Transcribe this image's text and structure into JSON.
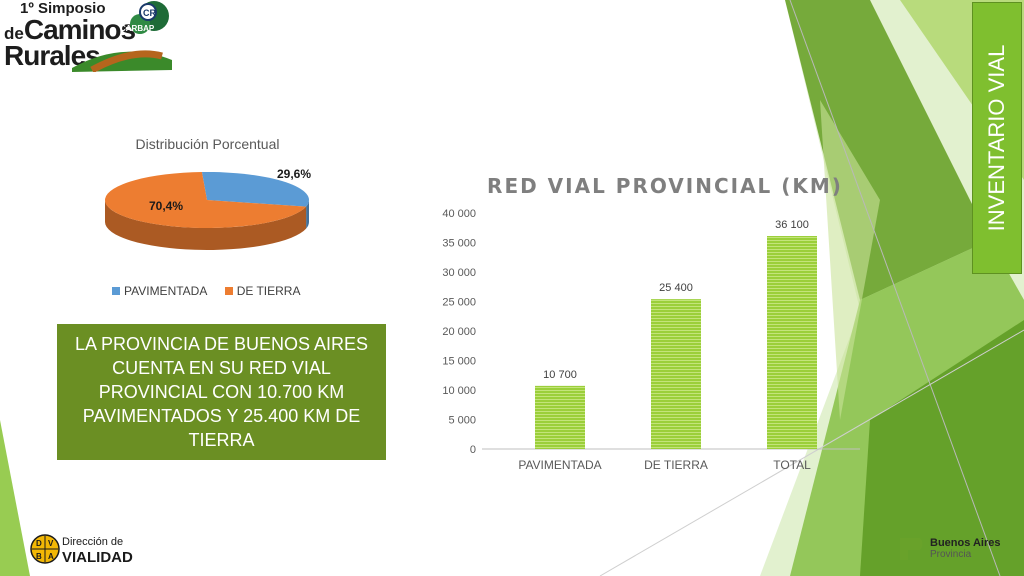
{
  "colors": {
    "accent_green": "#7fbf2f",
    "callout_bg": "#6b8f23",
    "pie_paved": "#5b9bd5",
    "pie_dirt": "#ed7d31",
    "bar_fill": "#9bcf3a"
  },
  "logo": {
    "line1": "1º Simposio",
    "line2_prefix": "de",
    "line2": "Caminos",
    "line3": "Rurales",
    "badge": "CARBAP",
    "emblem_letters": "CR"
  },
  "side_title": "INVENTARIO VIAL",
  "callout_text": "LA PROVINCIA DE BUENOS AIRES CUENTA EN SU RED VIAL PROVINCIAL CON 10.700 KM PAVIMENTADOS Y 25.400 KM DE TIERRA",
  "footer": {
    "left_line1": "Dirección de",
    "left_line2": "VIALIDAD",
    "left_badge_letters": [
      "D",
      "V",
      "B",
      "A"
    ],
    "right_line1": "Buenos Aires",
    "right_line2": "Provincia"
  },
  "chart_data": [
    {
      "type": "pie",
      "title": "Distribución Porcentual",
      "categories": [
        "PAVIMENTADA",
        "DE TIERRA"
      ],
      "values": [
        29.6,
        70.4
      ],
      "labels": [
        "29,6%",
        "70,4%"
      ],
      "legend": "bottom",
      "colors": [
        "#5b9bd5",
        "#ed7d31"
      ],
      "style": "3d"
    },
    {
      "type": "bar",
      "title": "RED VIAL PROVINCIAL (KM)",
      "categories": [
        "PAVIMENTADA",
        "DE TIERRA",
        "TOTAL"
      ],
      "values": [
        10700,
        25400,
        36100
      ],
      "value_labels": [
        "10 700",
        "25 400",
        "36 100"
      ],
      "ylim": [
        0,
        40000
      ],
      "yticks": [
        0,
        5000,
        10000,
        15000,
        20000,
        25000,
        30000,
        35000,
        40000
      ],
      "ytick_labels": [
        "0",
        "5 000",
        "10 000",
        "15 000",
        "20 000",
        "25 000",
        "30 000",
        "35 000",
        "40 000"
      ],
      "grid": false,
      "xlabel": "",
      "ylabel": ""
    }
  ]
}
